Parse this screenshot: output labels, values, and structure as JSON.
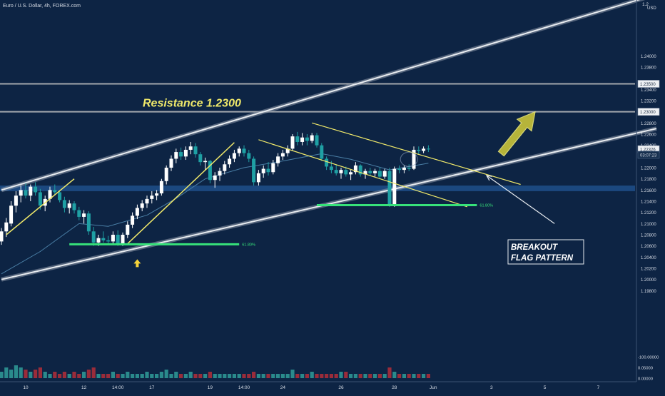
{
  "symbol_title": "Euro / U.S. Dollar, 4h, FOREX.com",
  "currency": "USD",
  "colors": {
    "background": "#0d2444",
    "bull": "#ffffff",
    "bear": "#1fa0a4",
    "vol_bull": "#2a8a8c",
    "vol_bear": "#9a2c3a",
    "ma": "#4a7fa6",
    "channel": "#c8c8c8",
    "annotation": "#f0e96a",
    "fib": "#37e27a",
    "support_zone": "#1f4f8a"
  },
  "chart_data": {
    "type": "candlestick",
    "y_min": 1.19,
    "y_max": 1.25,
    "y_ticks": [
      {
        "value": 1.24,
        "label": "1.24000"
      },
      {
        "value": 1.238,
        "label": "1.23800"
      },
      {
        "value": 1.234,
        "label": "1.23400"
      },
      {
        "value": 1.232,
        "label": "1.23200"
      },
      {
        "value": 1.228,
        "label": "1.22800"
      },
      {
        "value": 1.226,
        "label": "1.22600"
      },
      {
        "value": 1.224,
        "label": "1.22400"
      },
      {
        "value": 1.22,
        "label": "1.22000"
      },
      {
        "value": 1.218,
        "label": "1.21800"
      },
      {
        "value": 1.216,
        "label": "1.21600"
      },
      {
        "value": 1.214,
        "label": "1.21400"
      },
      {
        "value": 1.212,
        "label": "1.21200"
      },
      {
        "value": 1.21,
        "label": "1.21000"
      },
      {
        "value": 1.208,
        "label": "1.20800"
      },
      {
        "value": 1.206,
        "label": "1.20600"
      },
      {
        "value": 1.204,
        "label": "1.20400"
      },
      {
        "value": 1.202,
        "label": "1.20200"
      },
      {
        "value": 1.2,
        "label": "1.20000"
      },
      {
        "value": 1.198,
        "label": "1.19800"
      }
    ],
    "top_tick": "1.2",
    "price_tags": [
      {
        "value": 1.235,
        "label": "1.23500",
        "style": "light"
      },
      {
        "value": 1.23,
        "label": "1.23000",
        "style": "light"
      },
      {
        "value": 1.2233,
        "label": "1.22326",
        "style": "light"
      },
      {
        "value": 1.2223,
        "label": "03:07:23",
        "style": "dark"
      }
    ],
    "volume_ticks": [
      {
        "value": 0.1,
        "label": "-100.00000"
      },
      {
        "value": 0.05,
        "label": "0.05000"
      },
      {
        "value": 0.0,
        "label": "0.00000"
      }
    ],
    "x_ticks": [
      {
        "label": "10",
        "index": 5
      },
      {
        "label": "12",
        "index": 17
      },
      {
        "label": "14:00",
        "index": 24
      },
      {
        "label": "17",
        "index": 31
      },
      {
        "label": "19",
        "index": 43
      },
      {
        "label": "14:00",
        "index": 50
      },
      {
        "label": "24",
        "index": 58
      },
      {
        "label": "26",
        "index": 70
      },
      {
        "label": "28",
        "index": 81
      },
      {
        "label": "Jun",
        "index": 89
      },
      {
        "label": "3",
        "index": 101
      },
      {
        "label": "5",
        "index": 112
      },
      {
        "label": "7",
        "index": 123
      }
    ],
    "x_index_max": 135,
    "ohlc": [
      [
        1.2068,
        1.2092,
        1.2062,
        1.2086
      ],
      [
        1.2086,
        1.211,
        1.2076,
        1.2102
      ],
      [
        1.21,
        1.214,
        1.2095,
        1.2132
      ],
      [
        1.2132,
        1.2158,
        1.212,
        1.215
      ],
      [
        1.215,
        1.2168,
        1.2138,
        1.216
      ],
      [
        1.216,
        1.2172,
        1.2145,
        1.215
      ],
      [
        1.215,
        1.217,
        1.214,
        1.2166
      ],
      [
        1.2166,
        1.2174,
        1.215,
        1.2156
      ],
      [
        1.2156,
        1.2162,
        1.2125,
        1.2132
      ],
      [
        1.2132,
        1.215,
        1.2122,
        1.2144
      ],
      [
        1.2144,
        1.2166,
        1.2138,
        1.216
      ],
      [
        1.216,
        1.217,
        1.215,
        1.2156
      ],
      [
        1.2156,
        1.216,
        1.2138,
        1.2142
      ],
      [
        1.2142,
        1.2148,
        1.212,
        1.2128
      ],
      [
        1.2128,
        1.2142,
        1.2118,
        1.2136
      ],
      [
        1.2136,
        1.214,
        1.2118,
        1.2124
      ],
      [
        1.2124,
        1.213,
        1.2106,
        1.2112
      ],
      [
        1.2112,
        1.2124,
        1.21,
        1.2118
      ],
      [
        1.2118,
        1.2122,
        1.208,
        1.2086
      ],
      [
        1.2086,
        1.2094,
        1.206,
        1.2066
      ],
      [
        1.2066,
        1.208,
        1.206,
        1.2074
      ],
      [
        1.2074,
        1.2086,
        1.2066,
        1.207
      ],
      [
        1.207,
        1.2078,
        1.2062,
        1.2068
      ],
      [
        1.2068,
        1.2086,
        1.2062,
        1.208
      ],
      [
        1.208,
        1.2088,
        1.206,
        1.2064
      ],
      [
        1.2064,
        1.2084,
        1.206,
        1.208
      ],
      [
        1.208,
        1.2104,
        1.2074,
        1.2098
      ],
      [
        1.2098,
        1.212,
        1.2092,
        1.2114
      ],
      [
        1.2114,
        1.2134,
        1.2108,
        1.2128
      ],
      [
        1.2128,
        1.2142,
        1.2122,
        1.2136
      ],
      [
        1.2136,
        1.215,
        1.2128,
        1.2144
      ],
      [
        1.2144,
        1.2158,
        1.2136,
        1.215
      ],
      [
        1.215,
        1.216,
        1.2142,
        1.2154
      ],
      [
        1.2154,
        1.218,
        1.215,
        1.2176
      ],
      [
        1.2176,
        1.2204,
        1.217,
        1.22
      ],
      [
        1.22,
        1.2222,
        1.2194,
        1.2216
      ],
      [
        1.2216,
        1.2234,
        1.2208,
        1.2228
      ],
      [
        1.2228,
        1.2236,
        1.2214,
        1.222
      ],
      [
        1.222,
        1.2238,
        1.2214,
        1.2232
      ],
      [
        1.2232,
        1.2246,
        1.2224,
        1.2238
      ],
      [
        1.2238,
        1.2244,
        1.2218,
        1.2224
      ],
      [
        1.2224,
        1.2228,
        1.2204,
        1.221
      ],
      [
        1.221,
        1.2218,
        1.2196,
        1.2212
      ],
      [
        1.2212,
        1.2214,
        1.2172,
        1.2178
      ],
      [
        1.2178,
        1.2192,
        1.2164,
        1.2186
      ],
      [
        1.2186,
        1.22,
        1.2176,
        1.2194
      ],
      [
        1.2194,
        1.2212,
        1.2188,
        1.2206
      ],
      [
        1.2206,
        1.2222,
        1.22,
        1.2216
      ],
      [
        1.2216,
        1.2232,
        1.221,
        1.2226
      ],
      [
        1.2226,
        1.2238,
        1.222,
        1.2234
      ],
      [
        1.2234,
        1.224,
        1.222,
        1.2226
      ],
      [
        1.2226,
        1.2232,
        1.221,
        1.2216
      ],
      [
        1.2216,
        1.222,
        1.2168,
        1.2174
      ],
      [
        1.2174,
        1.2196,
        1.2168,
        1.219
      ],
      [
        1.219,
        1.2204,
        1.2182,
        1.2198
      ],
      [
        1.2198,
        1.221,
        1.2186,
        1.2192
      ],
      [
        1.2192,
        1.2214,
        1.2188,
        1.2208
      ],
      [
        1.2208,
        1.2226,
        1.2202,
        1.222
      ],
      [
        1.222,
        1.2232,
        1.2214,
        1.2226
      ],
      [
        1.2226,
        1.224,
        1.222,
        1.2234
      ],
      [
        1.2234,
        1.226,
        1.223,
        1.2256
      ],
      [
        1.2256,
        1.2264,
        1.224,
        1.2246
      ],
      [
        1.2246,
        1.2262,
        1.224,
        1.2254
      ],
      [
        1.2254,
        1.226,
        1.224,
        1.2248
      ],
      [
        1.2248,
        1.2262,
        1.2244,
        1.2258
      ],
      [
        1.2258,
        1.2262,
        1.2236,
        1.224
      ],
      [
        1.224,
        1.2244,
        1.2212,
        1.2216
      ],
      [
        1.2216,
        1.222,
        1.2196,
        1.2202
      ],
      [
        1.2202,
        1.2212,
        1.219,
        1.2196
      ],
      [
        1.2196,
        1.2206,
        1.2186,
        1.219
      ],
      [
        1.219,
        1.22,
        1.218,
        1.2196
      ],
      [
        1.2196,
        1.2202,
        1.2184,
        1.2188
      ],
      [
        1.2188,
        1.2196,
        1.2178,
        1.2192
      ],
      [
        1.2192,
        1.221,
        1.2188,
        1.2204
      ],
      [
        1.2204,
        1.2206,
        1.2184,
        1.2188
      ],
      [
        1.2188,
        1.2198,
        1.218,
        1.2194
      ],
      [
        1.2194,
        1.22,
        1.2186,
        1.219
      ],
      [
        1.219,
        1.2198,
        1.2184,
        1.2194
      ],
      [
        1.2194,
        1.22,
        1.218,
        1.2184
      ],
      [
        1.2184,
        1.2198,
        1.218,
        1.2194
      ],
      [
        1.2194,
        1.22,
        1.213,
        1.2134
      ],
      [
        1.2134,
        1.2202,
        1.213,
        1.2198
      ],
      [
        1.2198,
        1.2204,
        1.219,
        1.2196
      ],
      [
        1.2196,
        1.2204,
        1.219,
        1.22
      ],
      [
        1.22,
        1.2206,
        1.2194,
        1.2198
      ],
      [
        1.2198,
        1.2238,
        1.2196,
        1.2232
      ],
      [
        1.2232,
        1.2238,
        1.2224,
        1.223
      ],
      [
        1.223,
        1.2238,
        1.2226,
        1.2234
      ],
      [
        1.2234,
        1.224,
        1.2228,
        1.2233
      ]
    ],
    "volume": [
      0.03,
      0.05,
      0.04,
      0.06,
      0.05,
      0.04,
      0.03,
      0.04,
      0.05,
      0.03,
      0.02,
      0.03,
      0.02,
      0.03,
      0.02,
      0.03,
      0.02,
      0.03,
      0.04,
      0.05,
      0.02,
      0.02,
      0.02,
      0.03,
      0.02,
      0.02,
      0.03,
      0.02,
      0.02,
      0.02,
      0.03,
      0.02,
      0.02,
      0.03,
      0.04,
      0.02,
      0.03,
      0.02,
      0.02,
      0.03,
      0.02,
      0.02,
      0.02,
      0.03,
      0.02,
      0.02,
      0.02,
      0.02,
      0.02,
      0.02,
      0.02,
      0.02,
      0.03,
      0.02,
      0.02,
      0.02,
      0.02,
      0.02,
      0.02,
      0.02,
      0.04,
      0.02,
      0.02,
      0.02,
      0.03,
      0.02,
      0.02,
      0.02,
      0.02,
      0.02,
      0.03,
      0.03,
      0.02,
      0.02,
      0.02,
      0.02,
      0.02,
      0.02,
      0.02,
      0.02,
      0.05,
      0.03,
      0.02,
      0.02,
      0.02,
      0.02,
      0.02,
      0.02,
      0.02
    ],
    "ma": [
      [
        0,
        1.201
      ],
      [
        8,
        1.205
      ],
      [
        16,
        1.21
      ],
      [
        22,
        1.2095
      ],
      [
        30,
        1.2115
      ],
      [
        36,
        1.2145
      ],
      [
        42,
        1.218
      ],
      [
        50,
        1.22
      ],
      [
        58,
        1.2212
      ],
      [
        66,
        1.2225
      ],
      [
        72,
        1.2215
      ],
      [
        80,
        1.2196
      ],
      [
        88,
        1.2208
      ]
    ],
    "horizontal_levels": [
      1.235,
      1.23
    ],
    "channel_upper": [
      [
        0,
        1.216
      ],
      [
        135,
        1.251
      ]
    ],
    "channel_lower": [
      [
        0,
        1.2
      ],
      [
        135,
        1.227
      ]
    ],
    "support_zone": [
      1.2158,
      1.2168
    ],
    "fib_levels": [
      {
        "label": "61.80%",
        "value": 1.2063,
        "from": 14,
        "to": 49
      },
      {
        "label": "61.80%",
        "value": 1.2133,
        "from": 65,
        "to": 98
      }
    ],
    "flag_upper": [
      [
        64,
        1.228
      ],
      [
        107,
        1.217
      ]
    ],
    "flag_lower": [
      [
        53,
        1.225
      ],
      [
        96,
        1.213
      ]
    ],
    "rally_lines": [
      [
        [
          1,
          1.208
        ],
        [
          15,
          1.218
        ]
      ],
      [
        [
          26,
          1.2064
        ],
        [
          48,
          1.2245
        ]
      ]
    ],
    "target_arrow": {
      "from": [
        103,
        1.2225
      ],
      "to": [
        110,
        1.23
      ]
    },
    "buy_arrow": {
      "index": 28,
      "value": 1.2054
    },
    "resistance_label": "Resistance 1.2300",
    "breakout_label_1": "BREAKOUT",
    "breakout_label_2": "FLAG PATTERN",
    "callout_arrow": {
      "from": [
        114,
        1.21
      ],
      "to": [
        100,
        1.2186
      ]
    }
  }
}
